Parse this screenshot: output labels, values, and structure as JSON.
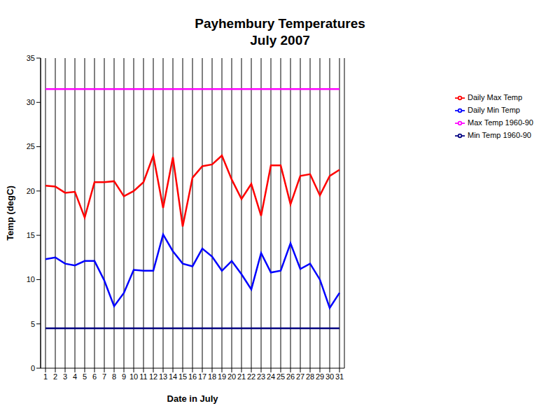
{
  "chart_data": {
    "type": "line",
    "title": "Payhembury Temperatures",
    "subtitle": "July 2007",
    "x_label": "Date in July",
    "y_label": "Temp (degC)",
    "x": [
      1,
      2,
      3,
      4,
      5,
      6,
      7,
      8,
      9,
      10,
      11,
      12,
      13,
      14,
      15,
      16,
      17,
      18,
      19,
      20,
      21,
      22,
      23,
      24,
      25,
      26,
      27,
      28,
      29,
      30,
      31
    ],
    "series": [
      {
        "name": "Daily Max Temp",
        "color": "#ff0000",
        "values": [
          20.6,
          20.5,
          19.8,
          19.9,
          17.0,
          21.0,
          21.0,
          21.1,
          19.4,
          20.0,
          21.0,
          24.0,
          18.1,
          23.8,
          16.0,
          21.5,
          22.8,
          23.0,
          24.0,
          21.3,
          19.1,
          20.8,
          17.2,
          22.9,
          22.9,
          18.5,
          21.7,
          21.9,
          19.5,
          21.7,
          22.4
        ]
      },
      {
        "name": "Daily Min Temp",
        "color": "#0000ff",
        "values": [
          12.3,
          12.5,
          11.8,
          11.6,
          12.1,
          12.1,
          9.9,
          7.0,
          8.5,
          11.1,
          11.0,
          11.0,
          15.1,
          13.2,
          11.8,
          11.5,
          13.5,
          12.6,
          11.0,
          12.1,
          10.6,
          8.9,
          13.0,
          10.8,
          11.0,
          14.1,
          11.2,
          11.8,
          10.0,
          6.8,
          8.5
        ]
      },
      {
        "name": "Max Temp 1960-90",
        "color": "#ff00ff",
        "values": [
          31.5,
          31.5,
          31.5,
          31.5,
          31.5,
          31.5,
          31.5,
          31.5,
          31.5,
          31.5,
          31.5,
          31.5,
          31.5,
          31.5,
          31.5,
          31.5,
          31.5,
          31.5,
          31.5,
          31.5,
          31.5,
          31.5,
          31.5,
          31.5,
          31.5,
          31.5,
          31.5,
          31.5,
          31.5,
          31.5,
          31.5
        ]
      },
      {
        "name": "Min Temp 1960-90",
        "color": "#000080",
        "values": [
          4.5,
          4.5,
          4.5,
          4.5,
          4.5,
          4.5,
          4.5,
          4.5,
          4.5,
          4.5,
          4.5,
          4.5,
          4.5,
          4.5,
          4.5,
          4.5,
          4.5,
          4.5,
          4.5,
          4.5,
          4.5,
          4.5,
          4.5,
          4.5,
          4.5,
          4.5,
          4.5,
          4.5,
          4.5,
          4.5,
          4.5
        ]
      }
    ],
    "xlim": [
      0.5,
      31.5
    ],
    "xticks": [
      1,
      2,
      3,
      4,
      5,
      6,
      7,
      8,
      9,
      10,
      11,
      12,
      13,
      14,
      15,
      16,
      17,
      18,
      19,
      20,
      21,
      22,
      23,
      24,
      25,
      26,
      27,
      28,
      29,
      30,
      31
    ],
    "ylim": [
      0,
      35
    ],
    "yticks": [
      0,
      5,
      10,
      15,
      20,
      25,
      30,
      35
    ],
    "grid": "x",
    "legend": "right"
  }
}
